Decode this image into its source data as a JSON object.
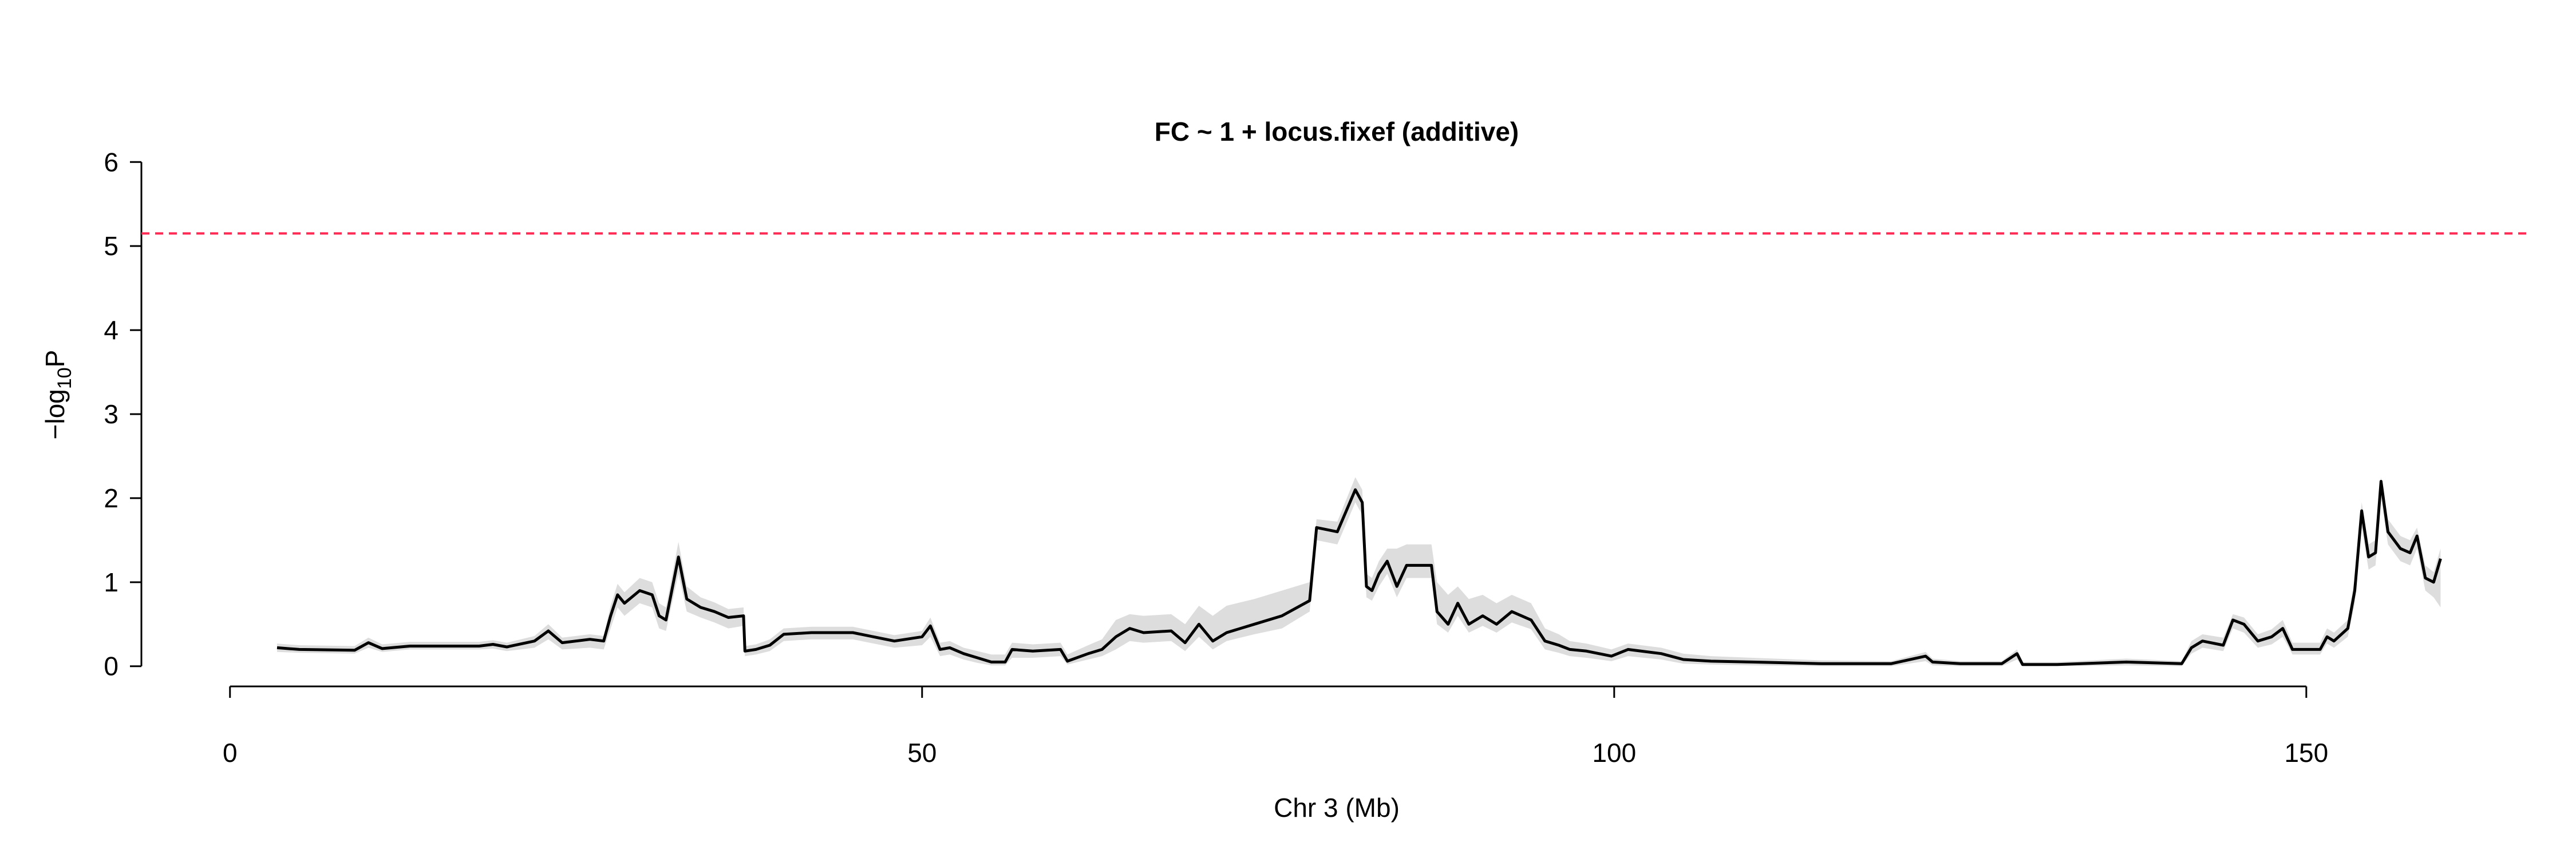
{
  "chart_data": {
    "type": "line",
    "title": "FC ~ 1 + locus.fixef (additive)",
    "x_label": "Chr 3 (Mb)",
    "y_label": {
      "prefix": "−log",
      "subscript": "10",
      "suffix": "P"
    },
    "x": [
      3.4,
      5,
      9,
      10,
      11,
      13,
      18,
      19,
      20,
      22,
      23,
      24,
      26,
      27,
      27.5,
      28,
      28.5,
      29.6,
      30.5,
      31,
      31.5,
      32.4,
      33,
      34,
      35,
      36,
      37.1,
      37.2,
      38,
      39,
      40,
      42,
      45,
      48,
      50,
      50.6,
      51.3,
      52,
      53,
      54,
      55,
      56,
      56.5,
      58,
      60,
      60.5,
      62,
      63,
      64,
      65,
      66,
      68,
      69,
      70,
      71,
      72,
      74,
      76,
      78,
      78.5,
      80,
      81.3,
      81.8,
      82.1,
      82.5,
      83,
      83.6,
      84.3,
      85,
      86.8,
      87.2,
      88,
      88.7,
      89.5,
      90.5,
      91.5,
      92.6,
      94,
      95,
      96,
      96.8,
      98,
      99.8,
      101,
      103.4,
      105,
      107,
      110,
      115,
      120,
      122.5,
      123,
      125,
      128,
      129.1,
      129.5,
      132,
      137,
      141,
      141.7,
      142.5,
      144,
      144.7,
      145.5,
      146.5,
      147.5,
      148.3,
      149,
      151,
      151.5,
      152,
      153,
      153.5,
      154,
      154.5,
      155,
      155.4,
      155.9,
      156.8,
      157.5,
      158,
      158.6,
      159.2,
      159.7
    ],
    "series": [
      {
        "color": "#000000",
        "values": [
          0.22,
          0.2,
          0.19,
          0.28,
          0.21,
          0.24,
          0.24,
          0.26,
          0.23,
          0.3,
          0.42,
          0.28,
          0.32,
          0.3,
          0.6,
          0.85,
          0.75,
          0.9,
          0.85,
          0.6,
          0.55,
          1.3,
          0.8,
          0.7,
          0.65,
          0.58,
          0.6,
          0.18,
          0.2,
          0.25,
          0.38,
          0.4,
          0.4,
          0.3,
          0.35,
          0.48,
          0.2,
          0.22,
          0.15,
          0.1,
          0.05,
          0.05,
          0.2,
          0.18,
          0.2,
          0.06,
          0.15,
          0.2,
          0.35,
          0.45,
          0.4,
          0.42,
          0.28,
          0.5,
          0.3,
          0.4,
          0.5,
          0.6,
          0.78,
          1.65,
          1.6,
          2.1,
          1.95,
          0.95,
          0.9,
          1.1,
          1.25,
          0.95,
          1.2,
          1.2,
          0.65,
          0.5,
          0.75,
          0.5,
          0.6,
          0.5,
          0.65,
          0.55,
          0.3,
          0.25,
          0.2,
          0.18,
          0.12,
          0.2,
          0.15,
          0.08,
          0.06,
          0.05,
          0.03,
          0.03,
          0.12,
          0.05,
          0.03,
          0.03,
          0.15,
          0.02,
          0.02,
          0.05,
          0.03,
          0.22,
          0.3,
          0.25,
          0.55,
          0.5,
          0.3,
          0.35,
          0.45,
          0.2,
          0.2,
          0.35,
          0.3,
          0.45,
          0.9,
          1.85,
          1.3,
          1.35,
          2.2,
          1.6,
          1.4,
          1.35,
          1.55,
          1.05,
          1.0,
          1.28
        ]
      }
    ],
    "band": {
      "color": "#dddddd",
      "lower": [
        0.17,
        0.16,
        0.15,
        0.22,
        0.17,
        0.2,
        0.2,
        0.21,
        0.18,
        0.22,
        0.32,
        0.2,
        0.22,
        0.2,
        0.45,
        0.7,
        0.6,
        0.75,
        0.7,
        0.45,
        0.42,
        1.1,
        0.65,
        0.58,
        0.52,
        0.45,
        0.48,
        0.12,
        0.14,
        0.18,
        0.3,
        0.32,
        0.32,
        0.22,
        0.25,
        0.35,
        0.12,
        0.14,
        0.08,
        0.04,
        0.01,
        0.01,
        0.1,
        0.1,
        0.12,
        0.02,
        0.08,
        0.12,
        0.2,
        0.3,
        0.28,
        0.3,
        0.18,
        0.35,
        0.2,
        0.3,
        0.38,
        0.45,
        0.65,
        1.5,
        1.45,
        1.95,
        1.8,
        0.82,
        0.78,
        0.95,
        1.1,
        0.82,
        1.05,
        1.05,
        0.5,
        0.4,
        0.6,
        0.4,
        0.48,
        0.4,
        0.52,
        0.44,
        0.2,
        0.16,
        0.12,
        0.1,
        0.06,
        0.12,
        0.08,
        0.03,
        0.02,
        0.01,
        0,
        0,
        0.06,
        0.01,
        0,
        0,
        0.08,
        0,
        0,
        0.01,
        0,
        0.15,
        0.22,
        0.18,
        0.45,
        0.4,
        0.22,
        0.26,
        0.35,
        0.14,
        0.14,
        0.27,
        0.22,
        0.35,
        0.75,
        1.65,
        1.15,
        1.2,
        2.0,
        1.45,
        1.25,
        1.2,
        1.4,
        0.9,
        0.82,
        0.7
      ],
      "upper": [
        0.27,
        0.25,
        0.24,
        0.34,
        0.26,
        0.29,
        0.29,
        0.31,
        0.28,
        0.36,
        0.5,
        0.34,
        0.38,
        0.36,
        0.72,
        0.98,
        0.88,
        1.05,
        1.0,
        0.75,
        0.7,
        1.48,
        0.95,
        0.82,
        0.76,
        0.68,
        0.7,
        0.24,
        0.26,
        0.32,
        0.45,
        0.47,
        0.47,
        0.37,
        0.42,
        0.58,
        0.28,
        0.3,
        0.22,
        0.18,
        0.14,
        0.14,
        0.28,
        0.26,
        0.28,
        0.14,
        0.25,
        0.32,
        0.55,
        0.62,
        0.6,
        0.62,
        0.5,
        0.72,
        0.6,
        0.72,
        0.8,
        0.9,
        1.0,
        1.75,
        1.72,
        2.25,
        2.1,
        1.1,
        1.05,
        1.25,
        1.4,
        1.4,
        1.45,
        1.45,
        1.0,
        0.85,
        0.95,
        0.8,
        0.85,
        0.75,
        0.85,
        0.75,
        0.45,
        0.38,
        0.3,
        0.27,
        0.2,
        0.27,
        0.22,
        0.15,
        0.12,
        0.1,
        0.07,
        0.06,
        0.17,
        0.09,
        0.06,
        0.06,
        0.2,
        0.05,
        0.05,
        0.09,
        0.06,
        0.3,
        0.38,
        0.34,
        0.62,
        0.58,
        0.38,
        0.44,
        0.55,
        0.28,
        0.28,
        0.45,
        0.4,
        0.55,
        1.05,
        1.95,
        1.45,
        1.5,
        2.25,
        1.75,
        1.55,
        1.5,
        1.65,
        1.2,
        1.12,
        1.4
      ]
    },
    "threshold": {
      "value": 5.15,
      "color": "#ff2d55"
    },
    "xlim": [
      -6.4,
      166.3
    ],
    "ylim": [
      -0.24,
      6.24
    ],
    "xticks": [
      0,
      50,
      100,
      150
    ],
    "yticks": [
      0,
      1,
      2,
      3,
      4,
      5,
      6
    ]
  }
}
